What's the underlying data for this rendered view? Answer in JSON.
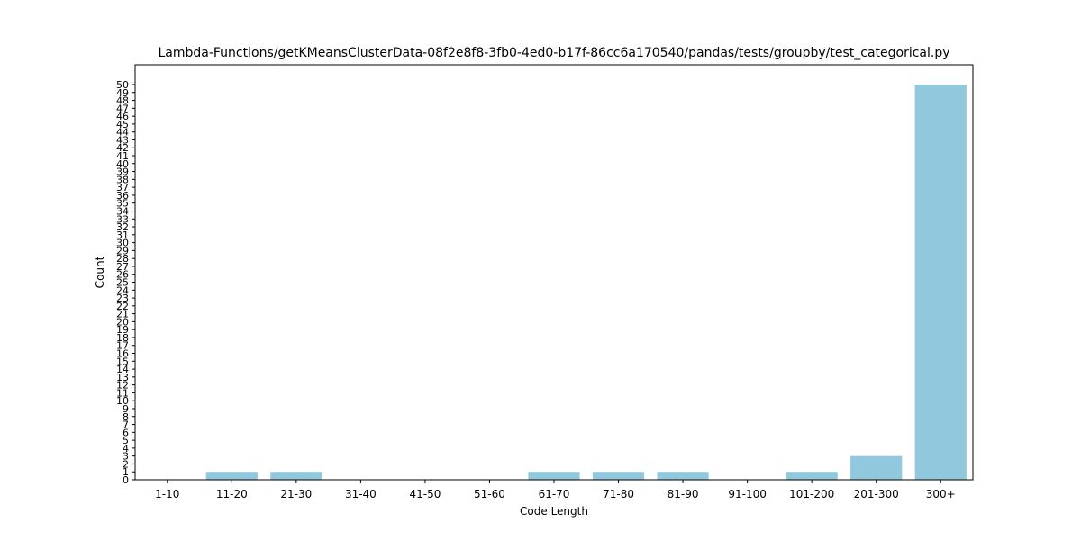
{
  "chart_data": {
    "type": "bar",
    "title": "Lambda-Functions/getKMeansClusterData-08f2e8f8-3fb0-4ed0-b17f-86cc6a170540/pandas/tests/groupby/test_categorical.py",
    "xlabel": "Code Length",
    "ylabel": "Count",
    "categories": [
      "1-10",
      "11-20",
      "21-30",
      "31-40",
      "41-50",
      "51-60",
      "61-70",
      "71-80",
      "81-90",
      "91-100",
      "101-200",
      "201-300",
      "300+"
    ],
    "values": [
      0,
      1,
      1,
      0,
      0,
      0,
      1,
      1,
      1,
      0,
      1,
      3,
      50
    ],
    "ylim": [
      0,
      50
    ],
    "yticks": [
      0,
      1,
      2,
      3,
      4,
      5,
      6,
      7,
      8,
      9,
      10,
      11,
      12,
      13,
      14,
      15,
      16,
      17,
      18,
      19,
      20,
      21,
      22,
      23,
      24,
      25,
      26,
      27,
      28,
      29,
      30,
      31,
      32,
      33,
      34,
      35,
      36,
      37,
      38,
      39,
      40,
      41,
      42,
      43,
      44,
      45,
      46,
      47,
      48,
      49,
      50
    ],
    "bar_color": "#92c8de",
    "grid": false,
    "legend": "none"
  }
}
